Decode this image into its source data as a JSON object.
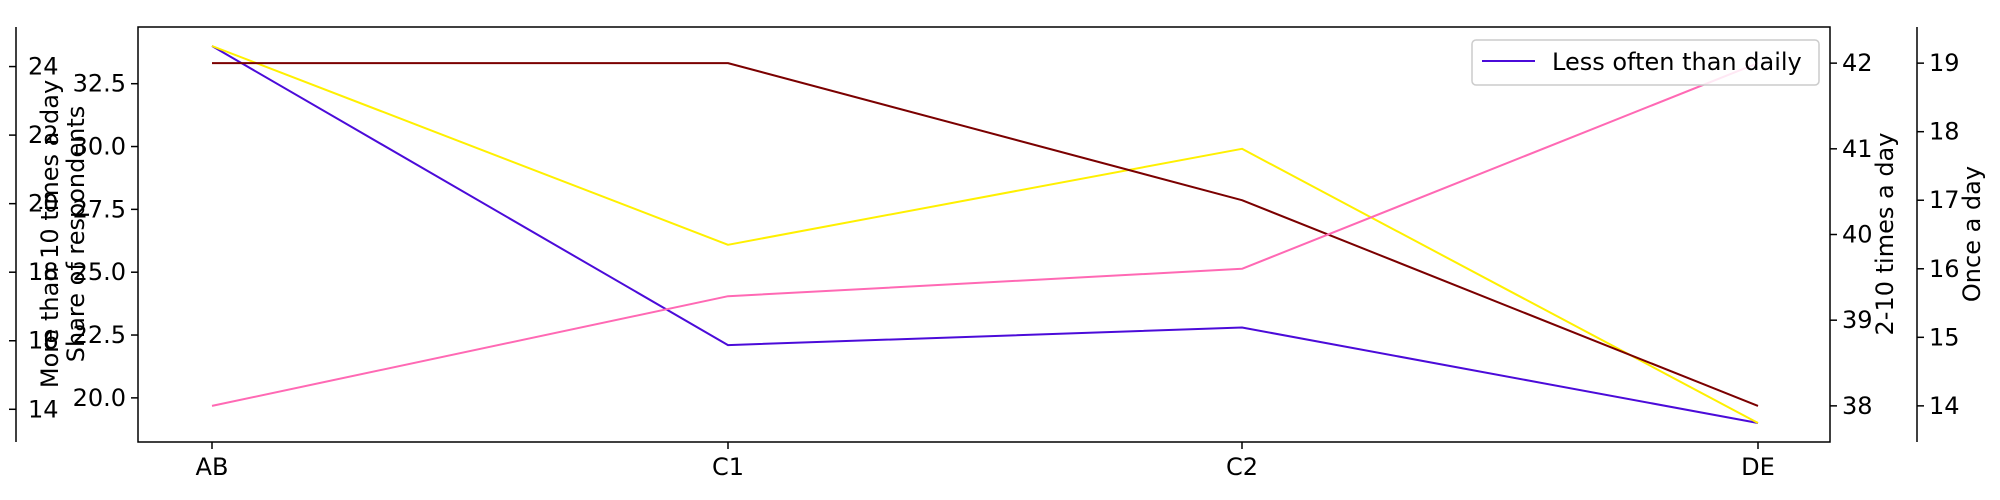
{
  "chart_data": {
    "type": "line",
    "categories": [
      "AB",
      "C1",
      "C2",
      "DE"
    ],
    "grid": false,
    "legend_position": "top-right",
    "legend_entries": [
      "Less often than daily"
    ],
    "axes": [
      {
        "id": "share",
        "label": "Share of respondents",
        "side": "left-inner",
        "ylim": [
          19.0,
          34.0
        ],
        "ticks": [
          20.0,
          22.5,
          25.0,
          27.5,
          30.0,
          32.5
        ],
        "tick_labels": [
          "20.0",
          "22.5",
          "25.0",
          "27.5",
          "30.0",
          "32.5"
        ]
      },
      {
        "id": "more10",
        "label": "More than 10 times a day",
        "side": "left-outer",
        "ylim": [
          13.6,
          24.6
        ],
        "ticks": [
          14,
          16,
          18,
          20,
          22,
          24
        ],
        "tick_labels": [
          "14",
          "16",
          "18",
          "20",
          "22",
          "24"
        ]
      },
      {
        "id": "two10",
        "label": "2-10 times a day",
        "side": "right-inner",
        "ylim": [
          37.8,
          42.2
        ],
        "ticks": [
          38,
          39,
          40,
          41,
          42
        ],
        "tick_labels": [
          "38",
          "39",
          "40",
          "41",
          "42"
        ]
      },
      {
        "id": "once",
        "label": "Once a day",
        "side": "right-outer",
        "ylim": [
          13.75,
          19.25
        ],
        "ticks": [
          14,
          15,
          16,
          17,
          18,
          19
        ],
        "tick_labels": [
          "14",
          "15",
          "16",
          "17",
          "18",
          "19"
        ]
      }
    ],
    "series": [
      {
        "name": "Less often than daily",
        "axis": "share",
        "color": "#4b0bd9",
        "values": [
          34.0,
          22.1,
          22.8,
          19.0
        ]
      },
      {
        "axis": "more10",
        "color": "#fff000",
        "values": [
          24.6,
          18.8,
          21.6,
          13.6
        ]
      },
      {
        "axis": "two10",
        "color": "#7b0000",
        "values": [
          42.0,
          42.0,
          40.4,
          38.0
        ]
      },
      {
        "axis": "once",
        "color": "#ff69b4",
        "values": [
          14.0,
          15.6,
          16.0,
          19.0
        ]
      }
    ]
  }
}
